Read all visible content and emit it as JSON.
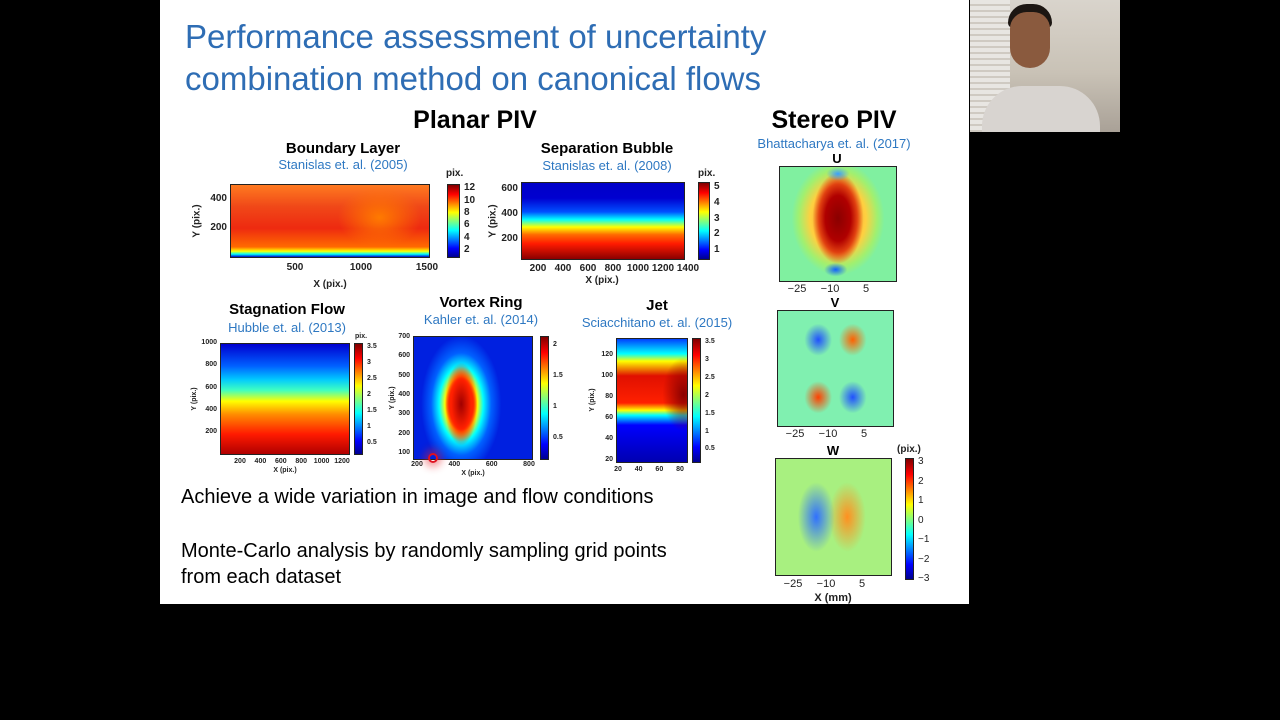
{
  "slide": {
    "title_lines": [
      "Performance assessment of uncertainty",
      "combination method on canonical flows"
    ],
    "planar_heading": "Planar PIV",
    "stereo_heading": "Stereo PIV",
    "bullets": [
      "Achieve a wide variation in image and flow conditions",
      "Monte-Carlo analysis by randomly sampling grid points",
      "from each dataset"
    ]
  },
  "colormap": [
    "#00008f",
    "#0000ff",
    "#00ffff",
    "#ffff00",
    "#ff0000",
    "#800000"
  ],
  "plots": [
    {
      "id": "boundary-layer",
      "title": "Boundary Layer",
      "citation": "Stanislas et. al. (2005)",
      "xlabel": "X (pix.)",
      "ylabel": "Y (pix.)",
      "x_ticks": [
        "500",
        "1000",
        "1500"
      ],
      "y_ticks": [
        "400",
        "200"
      ],
      "colorbar_label": "pix.",
      "colorbar_ticks": [
        "12",
        "10",
        "8",
        "6",
        "4",
        "2"
      ]
    },
    {
      "id": "separation-bubble",
      "title": "Separation Bubble",
      "citation": "Stanislas et. al. (2008)",
      "xlabel": "X (pix.)",
      "ylabel": "Y (pix.)",
      "x_ticks": [
        "200",
        "400",
        "600",
        "800",
        "1000",
        "1200",
        "1400"
      ],
      "y_ticks": [
        "600",
        "400",
        "200"
      ],
      "colorbar_label": "pix.",
      "colorbar_ticks": [
        "5",
        "4",
        "3",
        "2",
        "1"
      ]
    },
    {
      "id": "stagnation-flow",
      "title": "Stagnation Flow",
      "citation": "Hubble et. al. (2013)",
      "xlabel": "X (pix.)",
      "ylabel": "Y (pix.)",
      "x_ticks": [
        "200",
        "400",
        "600",
        "800",
        "1000",
        "1200"
      ],
      "y_ticks": [
        "1000",
        "800",
        "600",
        "400",
        "200"
      ],
      "colorbar_label": "pix.",
      "colorbar_ticks": [
        "3.5",
        "3",
        "2.5",
        "2",
        "1.5",
        "1",
        "0.5"
      ]
    },
    {
      "id": "vortex-ring",
      "title": "Vortex Ring",
      "citation": "Kahler et. al. (2014)",
      "xlabel": "X (pix.)",
      "ylabel": "Y (pix.)",
      "x_ticks": [
        "200",
        "400",
        "600",
        "800"
      ],
      "y_ticks": [
        "700",
        "600",
        "500",
        "400",
        "300",
        "200",
        "100"
      ],
      "colorbar_label": "",
      "colorbar_ticks": [
        "2",
        "1.5",
        "1",
        "0.5"
      ]
    },
    {
      "id": "jet",
      "title": "Jet",
      "citation": "Sciacchitano et. al. (2015)",
      "xlabel": "",
      "ylabel": "Y (pix.)",
      "x_ticks": [
        "20",
        "40",
        "60",
        "80"
      ],
      "y_ticks": [
        "120",
        "100",
        "80",
        "60",
        "40",
        "20"
      ],
      "colorbar_label": "",
      "colorbar_ticks": [
        "3.5",
        "3",
        "2.5",
        "2",
        "1.5",
        "1",
        "0.5"
      ]
    }
  ],
  "stereo": {
    "citation": "Bhattacharya et. al. (2017)",
    "panels": [
      {
        "id": "u",
        "label": "U",
        "x_ticks": [
          "−25",
          "−10",
          "5"
        ]
      },
      {
        "id": "v",
        "label": "V",
        "x_ticks": [
          "−25",
          "−10",
          "5"
        ]
      },
      {
        "id": "w",
        "label": "W",
        "x_ticks": [
          "−25",
          "−10",
          "5"
        ]
      }
    ],
    "xlabel": "X (mm)",
    "colorbar_label": "(pix.)",
    "colorbar_ticks": [
      "3",
      "2",
      "1",
      "0",
      "−1",
      "−2",
      "−3"
    ]
  }
}
